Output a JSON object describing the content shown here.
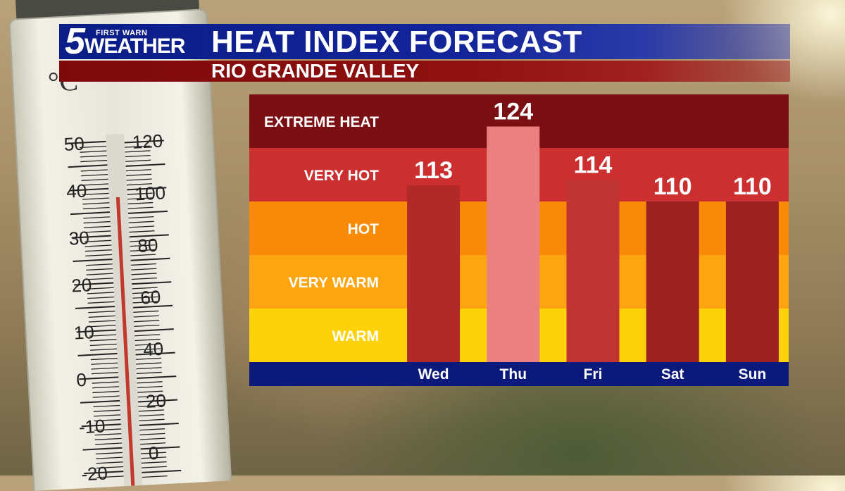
{
  "header": {
    "logo_number": "5",
    "logo_top": "FIRST WARN",
    "logo_bottom": "WEATHER",
    "title": "HEAT INDEX FORECAST",
    "subtitle": "RIO GRANDE VALLEY"
  },
  "thermometer": {
    "celsius_labels": [
      "50",
      "40",
      "30",
      "20",
      "10",
      "0",
      "-10",
      "-20"
    ],
    "fahrenheit_labels": [
      "120",
      "100",
      "80",
      "60",
      "40",
      "20",
      "0"
    ],
    "celsius_symbol": "°C"
  },
  "chart_data": {
    "type": "bar",
    "title": "HEAT INDEX FORECAST",
    "categories": [
      "Wed",
      "Thu",
      "Fri",
      "Sat",
      "Sun"
    ],
    "values": [
      113,
      124,
      114,
      110,
      110
    ],
    "bands": [
      {
        "label": "EXTREME HEAT",
        "color": "#7a1014"
      },
      {
        "label": "VERY HOT",
        "color": "#cc2f2f"
      },
      {
        "label": "HOT",
        "color": "#f98a08"
      },
      {
        "label": "VERY WARM",
        "color": "#fca510"
      },
      {
        "label": "WARM",
        "color": "#fdd20a"
      }
    ],
    "bar_colors": [
      "#b02a2a",
      "#eb8080",
      "#c03434",
      "#9c2222",
      "#9c2222"
    ],
    "axis_bar_color": "#0b1a7a"
  }
}
